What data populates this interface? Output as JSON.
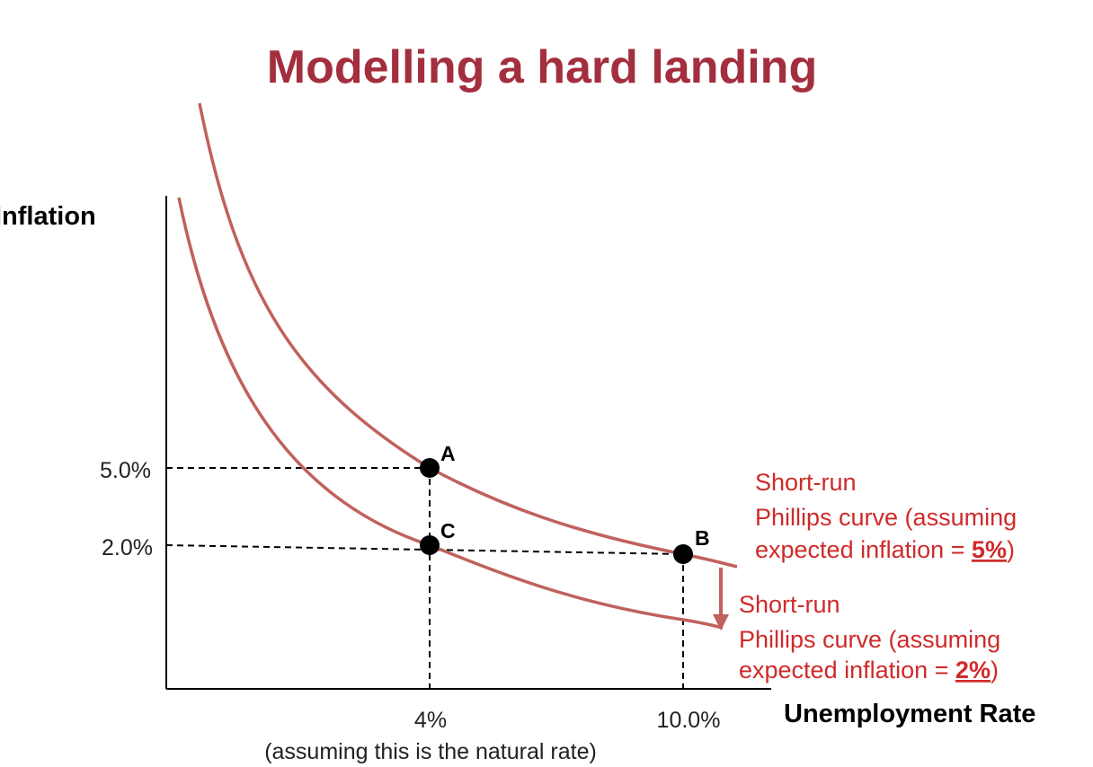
{
  "title": "Modelling a hard landing",
  "colors": {
    "title": "#a32f3e",
    "curve": "#c0615c",
    "annotation": "#d02a2a",
    "arrow": "#c0615c"
  },
  "chart_data": {
    "type": "line",
    "title": "Modelling a hard landing",
    "xlabel": "Unemployment Rate",
    "ylabel": "Inflation",
    "x_ticks": [
      {
        "value": 4,
        "label": "4%",
        "sublabel": "(assuming this is the natural rate)"
      },
      {
        "value": 10,
        "label": "10.0%"
      }
    ],
    "y_ticks": [
      {
        "value": 5,
        "label": "5.0%"
      },
      {
        "value": 2,
        "label": "2.0%"
      }
    ],
    "points": [
      {
        "name": "A",
        "x": 4,
        "y": 5
      },
      {
        "name": "B",
        "x": 10,
        "y": 2
      },
      {
        "name": "C",
        "x": 4,
        "y": 2
      }
    ],
    "series": [
      {
        "line1": "Short-run",
        "line2": "Phillips curve (assuming",
        "line3_prefix": "expected inflation = ",
        "line3_value": "5%",
        "line3_suffix": ")"
      },
      {
        "line1": "Short-run",
        "line2": "Phillips curve (assuming",
        "line3_prefix": "expected inflation = ",
        "line3_value": "2%",
        "line3_suffix": ")"
      }
    ],
    "annotations": [
      "shift-down-arrow"
    ]
  }
}
